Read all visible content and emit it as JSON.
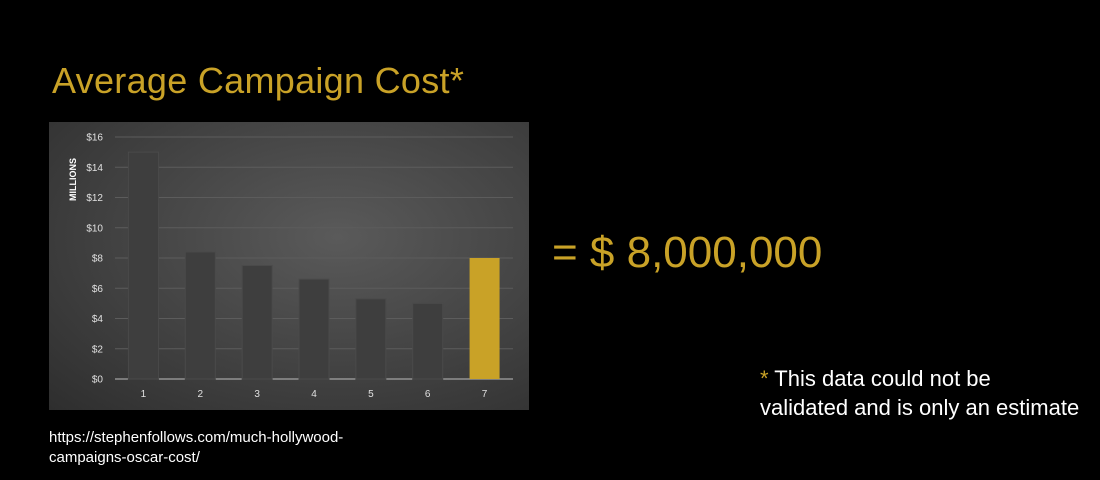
{
  "slide": {
    "title": "Average Campaign Cost*",
    "big_value": "= $ 8,000,000",
    "footnote_star": "*",
    "footnote_text": "This data could not be validated and is only an estimate",
    "source_line1": "https://stephenfollows.com/much-hollywood-",
    "source_line2": "campaigns-oscar-cost/"
  },
  "colors": {
    "accent": "#c9a227",
    "background": "#000000",
    "bar_dark": "#3e3e3e",
    "text": "#ffffff"
  },
  "chart_data": {
    "type": "bar",
    "categories": [
      "1",
      "2",
      "3",
      "4",
      "5",
      "6",
      "7"
    ],
    "values": [
      15,
      8.4,
      7.5,
      6.6,
      5.3,
      5.0,
      8.0
    ],
    "highlight_index": 6,
    "ylabel": "MILLIONS",
    "yticks": [
      "$0",
      "$2",
      "$4",
      "$6",
      "$8",
      "$10",
      "$12",
      "$14",
      "$16"
    ],
    "ylim": [
      0,
      16
    ],
    "grid": true,
    "legend": "none"
  }
}
